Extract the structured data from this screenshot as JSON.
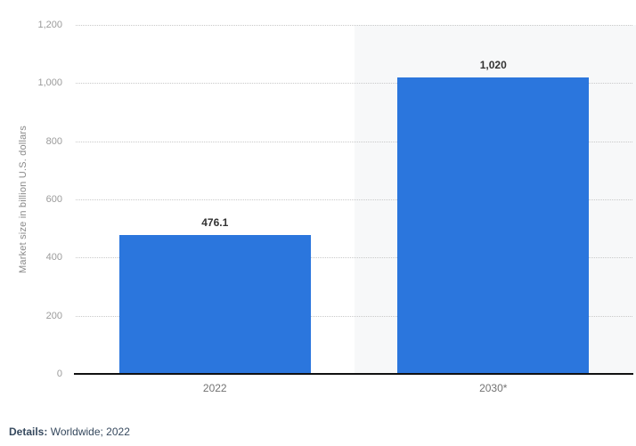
{
  "chart_data": {
    "type": "bar",
    "categories": [
      "2022",
      "2030*"
    ],
    "values": [
      476.1,
      1020
    ],
    "value_labels": [
      "476.1",
      "1,020"
    ],
    "title": "",
    "xlabel": "",
    "ylabel": "Market size in billion U.S. dollars",
    "ylim": [
      0,
      1200
    ],
    "ytick_interval": 200,
    "ytick_labels": [
      "0",
      "200",
      "400",
      "600",
      "800",
      "1,000",
      "1,200"
    ],
    "grid": "horizontal-dotted",
    "legend": "none",
    "highlight_category": "2030*",
    "bar_color": "#2b76dd",
    "highlight_bg": "#f7f8f9",
    "axis_line_color": "#111111"
  },
  "footer": {
    "details_label": "Details:",
    "details_value": "Worldwide; 2022"
  }
}
